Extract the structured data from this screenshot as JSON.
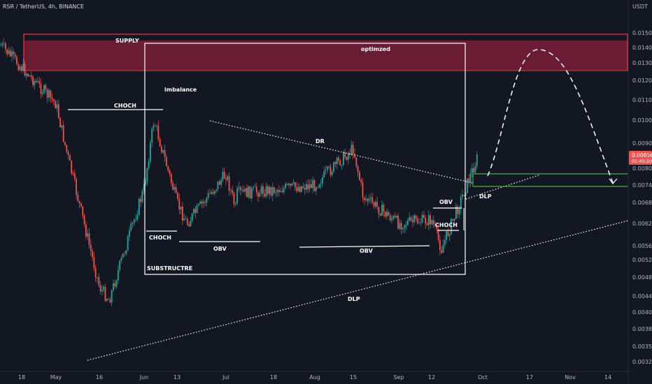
{
  "chart_data": {
    "type": "candlestick",
    "title": "RSR / TetherUS, 4h, BINANCE",
    "y_axis_unit": "USDT",
    "y_ticks": [
      "0.01500",
      "0.01400",
      "0.01300",
      "0.01200",
      "0.01100",
      "0.01000",
      "0.00900",
      "0.00800",
      "0.00740",
      "0.00680",
      "0.00620",
      "0.00560",
      "0.00520",
      "0.00480",
      "0.00440",
      "0.00400",
      "0.00380",
      "0.00350",
      "0.00326"
    ],
    "x_ticks": [
      "18",
      "May",
      "16",
      "Jun",
      "13",
      "Jul",
      "18",
      "Aug",
      "15",
      "Sep",
      "12",
      "Oct",
      "17",
      "Nov",
      "14"
    ],
    "last_price": "0.00856",
    "last_time": "01:45:20",
    "colors": {
      "up": "#26a69a",
      "down": "#ef5350",
      "background": "#131722",
      "supply_zone": "#7a1f35",
      "zone_border": "#f23645"
    },
    "series": [
      {
        "name": "price_path",
        "points": [
          [
            "18",
            0.0142
          ],
          [
            "May",
            0.0108
          ],
          [
            "May",
            0.0088
          ],
          [
            "16",
            0.0046
          ],
          [
            "16",
            0.0043
          ],
          [
            "Jun",
            0.0073
          ],
          [
            "Jun",
            0.01
          ],
          [
            "13",
            0.0068
          ],
          [
            "13",
            0.0062
          ],
          [
            "Jul",
            0.0078
          ],
          [
            "Jul",
            0.0066
          ],
          [
            "18",
            0.0064
          ],
          [
            "Aug",
            0.0074
          ],
          [
            "15",
            0.0088
          ],
          [
            "15",
            0.007
          ],
          [
            "Sep",
            0.0062
          ],
          [
            "12",
            0.0063
          ],
          [
            "12",
            0.0055
          ],
          [
            "Oct",
            0.0086
          ]
        ]
      }
    ],
    "annotations": [
      "SUPPLY",
      "optimzed",
      "imbalance",
      "CHOCH",
      "DR",
      "CHOCH",
      "OBV",
      "OBV",
      "OBV",
      "CHOCH",
      "SUBSTRUCTRE",
      "DLP",
      "DLP"
    ]
  }
}
